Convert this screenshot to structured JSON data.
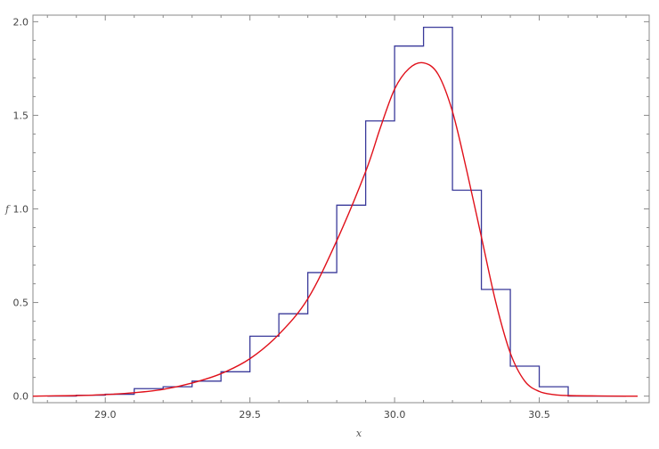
{
  "chart_data": {
    "type": "line",
    "title": "",
    "xlabel": "x",
    "ylabel": "f",
    "xlim": [
      28.75,
      30.88
    ],
    "ylim": [
      -0.035,
      2.035
    ],
    "grid": false,
    "x_ticks": [
      29.0,
      29.5,
      30.0,
      30.5
    ],
    "x_tick_labels": [
      "29.0",
      "29.5",
      "30.0",
      "30.5"
    ],
    "y_ticks": [
      0.0,
      0.5,
      1.0,
      1.5,
      2.0
    ],
    "y_tick_labels": [
      "0.0",
      "0.5",
      "1.0",
      "1.5",
      "2.0"
    ],
    "series": [
      {
        "type": "histogram",
        "color": "#3a3a9a",
        "bin_edges": [
          28.8,
          28.9,
          29.0,
          29.1,
          29.2,
          29.3,
          29.4,
          29.5,
          29.6,
          29.7,
          29.8,
          29.9,
          30.0,
          30.1,
          30.2,
          30.3,
          30.4,
          30.5,
          30.6,
          30.7,
          30.8
        ],
        "values": [
          0.0,
          0.005,
          0.01,
          0.04,
          0.05,
          0.08,
          0.13,
          0.32,
          0.44,
          0.66,
          1.02,
          1.47,
          1.87,
          1.97,
          1.1,
          0.57,
          0.16,
          0.05,
          0.0,
          0.0
        ]
      },
      {
        "type": "line",
        "color": "#e0101a",
        "x": [
          28.75,
          28.8,
          28.9,
          29.0,
          29.1,
          29.2,
          29.3,
          29.4,
          29.5,
          29.6,
          29.7,
          29.8,
          29.9,
          29.95,
          30.0,
          30.05,
          30.1,
          30.15,
          30.2,
          30.25,
          30.3,
          30.35,
          30.4,
          30.45,
          30.5,
          30.55,
          30.6,
          30.7,
          30.8,
          30.84
        ],
        "y": [
          0.0,
          0.001,
          0.003,
          0.008,
          0.018,
          0.036,
          0.07,
          0.12,
          0.2,
          0.33,
          0.52,
          0.83,
          1.2,
          1.43,
          1.64,
          1.75,
          1.78,
          1.72,
          1.52,
          1.2,
          0.85,
          0.5,
          0.23,
          0.08,
          0.025,
          0.008,
          0.003,
          0.001,
          0.0,
          0.0
        ]
      }
    ]
  }
}
